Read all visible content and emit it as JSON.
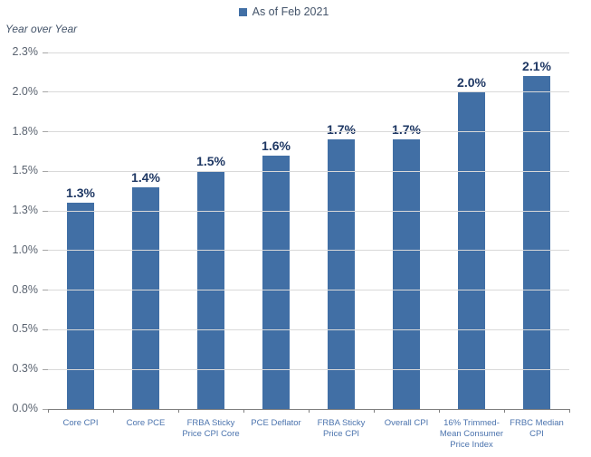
{
  "chart_data": {
    "type": "bar",
    "title": "",
    "legend": "As of Feb 2021",
    "legend_position": "top-center",
    "ylabel": "Year over Year",
    "xlabel": "",
    "categories": [
      "Core CPI",
      "Core PCE",
      "FRBA Sticky Price CPI Core",
      "PCE Deflator",
      "FRBA Sticky Price CPI",
      "Overall CPI",
      "16% Trimmed-Mean Consumer Price Index",
      "FRBC Median CPI"
    ],
    "category_lines": [
      [
        "Core CPI"
      ],
      [
        "Core PCE"
      ],
      [
        "FRBA Sticky",
        "Price CPI Core"
      ],
      [
        "PCE Deflator"
      ],
      [
        "FRBA Sticky",
        "Price CPI"
      ],
      [
        "Overall CPI"
      ],
      [
        "16% Trimmed-",
        "Mean Consumer",
        "Price Index"
      ],
      [
        "FRBC Median",
        "CPI"
      ]
    ],
    "values": [
      1.3,
      1.4,
      1.5,
      1.6,
      1.7,
      1.7,
      2.0,
      2.1
    ],
    "value_labels": [
      "1.3%",
      "1.4%",
      "1.5%",
      "1.6%",
      "1.7%",
      "1.7%",
      "2.0%",
      "2.1%"
    ],
    "y_ticks": [
      {
        "value": 0.0,
        "label": "0.0%"
      },
      {
        "value": 0.25,
        "label": "0.3%"
      },
      {
        "value": 0.5,
        "label": "0.5%"
      },
      {
        "value": 0.75,
        "label": "0.8%"
      },
      {
        "value": 1.0,
        "label": "1.0%"
      },
      {
        "value": 1.25,
        "label": "1.3%"
      },
      {
        "value": 1.5,
        "label": "1.5%"
      },
      {
        "value": 1.75,
        "label": "1.8%"
      },
      {
        "value": 2.0,
        "label": "2.0%"
      },
      {
        "value": 2.25,
        "label": "2.3%"
      }
    ],
    "ylim": [
      0,
      2.25
    ],
    "grid": true,
    "bar_color": "#416FA5"
  },
  "colors": {
    "bar": "#416FA5",
    "gridline": "#D9D9D9",
    "axis_line": "#7F7F7F",
    "value_label": "#1F3864",
    "category_label": "#4C74AE",
    "tick_label": "#5A6370",
    "legend_text": "#44546A"
  }
}
